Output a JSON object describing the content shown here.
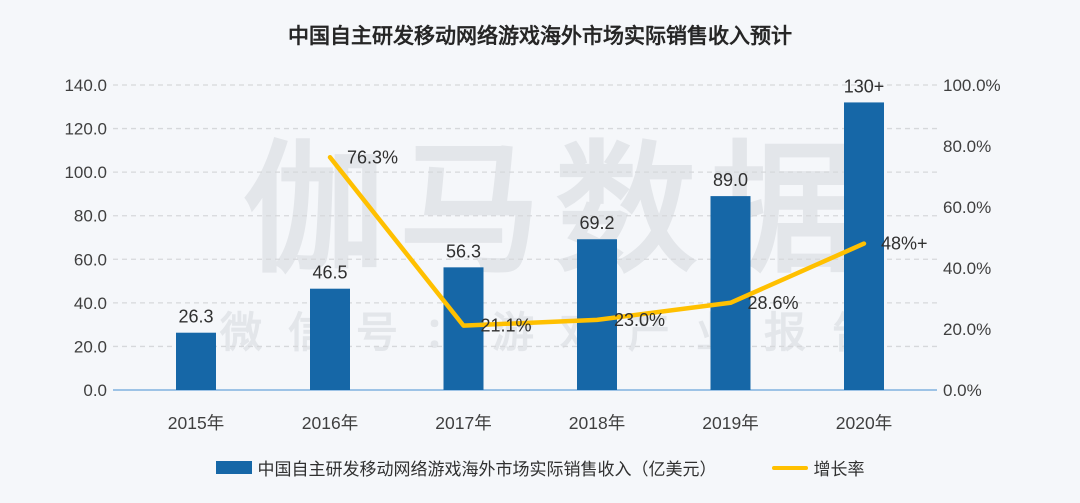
{
  "title": "中国自主研发移动网络游戏海外市场实际销售收入预计",
  "watermark": {
    "line1": "伽马数据",
    "line2": "微信号：游戏产业报告"
  },
  "colors": {
    "bar": "#1667A7",
    "line": "#FFC000",
    "background": "#F5F7FA",
    "grid": "#D6D8DB",
    "baseline": "#9DC3E6",
    "tick_text": "#3F3F3F",
    "data_label": "#303030",
    "watermark": "#E3E6EA",
    "title": "#262626"
  },
  "chart_data": {
    "type": "bar+line combo",
    "title": "中国自主研发移动网络游戏海外市场实际销售收入预计",
    "categories": [
      "2015年",
      "2016年",
      "2017年",
      "2018年",
      "2019年",
      "2020年"
    ],
    "series": [
      {
        "name": "中国自主研发移动网络游戏海外市场实际销售收入（亿美元）",
        "type": "bar",
        "axis": "left",
        "values": [
          26.3,
          46.5,
          56.3,
          69.2,
          89.0,
          "130+"
        ],
        "plot_values": [
          26.3,
          46.5,
          56.3,
          69.2,
          89.0,
          132
        ],
        "labels": [
          "26.3",
          "46.5",
          "56.3",
          "69.2",
          "89.0",
          "130+"
        ]
      },
      {
        "name": "增长率",
        "type": "line",
        "axis": "right",
        "values_pct": [
          null,
          76.3,
          21.1,
          23.0,
          28.6,
          "48+"
        ],
        "plot_values": [
          null,
          76.3,
          21.1,
          23.0,
          28.6,
          48
        ],
        "labels": [
          null,
          "76.3%",
          "21.1%",
          "23.0%",
          "28.6%",
          "48%+"
        ]
      }
    ],
    "left_axis": {
      "min": 0,
      "max": 140,
      "step": 20,
      "tick_labels": [
        "0.0",
        "20.0",
        "40.0",
        "60.0",
        "80.0",
        "100.0",
        "120.0",
        "140.0"
      ]
    },
    "right_axis": {
      "min": 0,
      "max": 100,
      "step": 20,
      "tick_labels": [
        "0.0%",
        "20.0%",
        "40.0%",
        "60.0%",
        "80.0%",
        "100.0%"
      ]
    },
    "legend": [
      "中国自主研发移动网络游戏海外市场实际销售收入（亿美元）",
      "增长率"
    ],
    "grid": "horizontal dashed",
    "legend_position": "bottom"
  }
}
